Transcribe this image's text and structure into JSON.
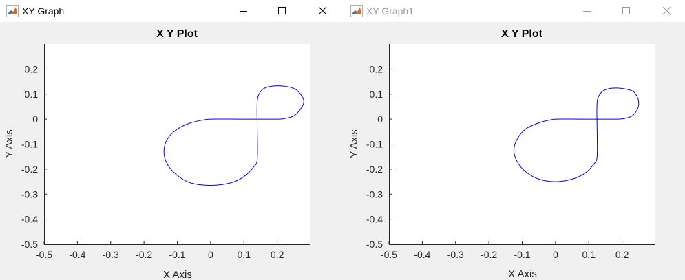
{
  "windows": [
    {
      "title": "XY Graph",
      "active": true,
      "controls": [
        "minimize-icon",
        "maximize-icon",
        "close-icon"
      ],
      "plot": {
        "title": "X Y Plot",
        "xlabel": "X Axis",
        "ylabel": "Y Axis",
        "xlim": [
          -0.5,
          0.3
        ],
        "ylim": [
          -0.5,
          0.3
        ],
        "xticks": [
          "-0.5",
          "-0.4",
          "-0.3",
          "-0.2",
          "-0.1",
          "0",
          "0.1",
          "0.2"
        ],
        "yticks": [
          "-0.5",
          "-0.4",
          "-0.3",
          "-0.2",
          "-0.1",
          "0",
          "0.1",
          "0.2"
        ],
        "line_color": "#0000ff"
      }
    },
    {
      "title": "XY Graph1",
      "active": false,
      "controls": [
        "minimize-icon",
        "maximize-icon",
        "close-icon"
      ],
      "plot": {
        "title": "X Y Plot",
        "xlabel": "X Axis",
        "ylabel": "Y Axis",
        "xlim": [
          -0.5,
          0.3
        ],
        "ylim": [
          -0.5,
          0.3
        ],
        "xticks": [
          "-0.5",
          "-0.4",
          "-0.3",
          "-0.2",
          "-0.1",
          "0",
          "0.1",
          "0.2"
        ],
        "yticks": [
          "-0.5",
          "-0.4",
          "-0.3",
          "-0.2",
          "-0.1",
          "0",
          "0.1",
          "0.2"
        ],
        "line_color": "#0000ff"
      }
    }
  ],
  "chart_data": [
    {
      "type": "line",
      "title": "X Y Plot",
      "xlabel": "X Axis",
      "ylabel": "Y Axis",
      "xlim": [
        -0.5,
        0.3
      ],
      "ylim": [
        -0.5,
        0.3
      ],
      "grid": false,
      "series": [
        {
          "color": "#0000ff",
          "x": [
            0.14,
            0.14,
            0.13,
            0.1,
            0.06,
            0.0,
            -0.06,
            -0.1,
            -0.13,
            -0.14,
            -0.13,
            -0.1,
            -0.06,
            -0.02,
            0.0,
            0.08,
            0.14,
            0.2,
            0.22,
            0.25,
            0.27,
            0.28,
            0.27,
            0.25,
            0.21,
            0.17,
            0.15,
            0.14,
            0.14
          ],
          "y": [
            -0.04,
            -0.16,
            -0.19,
            -0.23,
            -0.255,
            -0.265,
            -0.255,
            -0.225,
            -0.18,
            -0.13,
            -0.08,
            -0.04,
            -0.015,
            -0.003,
            0.0,
            0.0,
            0.0,
            0.0,
            0.002,
            0.013,
            0.04,
            0.07,
            0.1,
            0.123,
            0.133,
            0.128,
            0.11,
            0.07,
            -0.04
          ]
        }
      ]
    },
    {
      "type": "line",
      "title": "X Y Plot",
      "xlabel": "X Axis",
      "ylabel": "Y Axis",
      "xlim": [
        -0.5,
        0.3
      ],
      "ylim": [
        -0.5,
        0.3
      ],
      "grid": false,
      "series": [
        {
          "color": "#0000ff",
          "x": [
            0.125,
            0.125,
            0.115,
            0.09,
            0.05,
            0.0,
            -0.05,
            -0.09,
            -0.115,
            -0.125,
            -0.115,
            -0.09,
            -0.05,
            -0.015,
            0.0,
            0.07,
            0.125,
            0.18,
            0.205,
            0.23,
            0.245,
            0.25,
            0.245,
            0.23,
            0.19,
            0.155,
            0.135,
            0.125,
            0.125
          ],
          "y": [
            -0.04,
            -0.15,
            -0.18,
            -0.215,
            -0.24,
            -0.25,
            -0.24,
            -0.21,
            -0.17,
            -0.125,
            -0.08,
            -0.04,
            -0.015,
            -0.003,
            0.0,
            0.0,
            0.0,
            0.0,
            0.002,
            0.013,
            0.037,
            0.063,
            0.09,
            0.113,
            0.124,
            0.12,
            0.103,
            0.065,
            -0.04
          ]
        }
      ]
    }
  ]
}
